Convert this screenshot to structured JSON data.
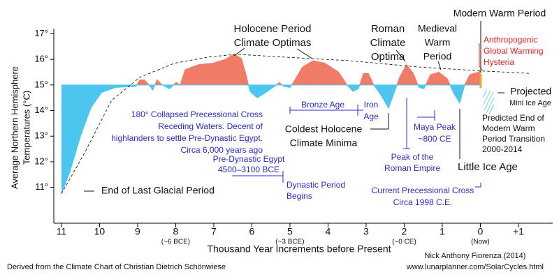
{
  "chart_data": {
    "type": "area",
    "y_label": [
      "Average Northern Hemisphere",
      "Temperatures (°C)"
    ],
    "x_label": "Thousand Year Increments before Present",
    "x": [
      11,
      10.78,
      10.5,
      10.23,
      9.95,
      9.59,
      9.04,
      8.94,
      8.82,
      8.7,
      8.6,
      8.49,
      8.35,
      8.16,
      7.99,
      7.88,
      7.75,
      7.39,
      7.02,
      6.7,
      6.47,
      6.28,
      6.16,
      6.05,
      5.86,
      5.64,
      5.4,
      5.28,
      5.18,
      5.0,
      4.87,
      4.67,
      4.39,
      4.08,
      3.72,
      3.5,
      3.35,
      3.2,
      3.07,
      2.94,
      2.8,
      2.61,
      2.41,
      2.25,
      2.12,
      1.94,
      1.76,
      1.61,
      1.48,
      1.31,
      1.09,
      0.87,
      0.69,
      0.54,
      0.41,
      0.28,
      0.06,
      0
    ],
    "values": [
      10.75,
      11.6,
      13.0,
      14.1,
      14.7,
      14.9,
      14.95,
      15.2,
      15.2,
      15.0,
      14.8,
      15.2,
      15.0,
      14.85,
      15.1,
      15.0,
      15.6,
      15.8,
      15.85,
      16.0,
      16.2,
      16.05,
      15.45,
      14.75,
      14.5,
      14.7,
      14.95,
      15.1,
      14.95,
      14.9,
      15.2,
      15.7,
      15.95,
      15.85,
      15.5,
      15.0,
      14.75,
      14.85,
      15.45,
      15.45,
      15.0,
      14.6,
      14.1,
      14.75,
      15.3,
      15.8,
      15.45,
      14.9,
      14.85,
      15.4,
      15.5,
      15.25,
      14.65,
      14.3,
      15.0,
      15.4,
      15.5,
      15.55
    ],
    "trend": {
      "x": [
        11,
        10.41,
        9.68,
        8.94,
        8.03,
        7.11,
        6.38,
        5.28,
        3.44,
        1.61,
        -0.05,
        -1.33
      ],
      "values": [
        10.75,
        12.3,
        14.4,
        15.3,
        15.85,
        16.1,
        16.2,
        16.1,
        15.95,
        15.7,
        15.55,
        15.45
      ]
    },
    "baseline": 15,
    "colors": {
      "above": "#f07b66",
      "below": "#4cc6ef",
      "note": "#2b2bd0",
      "alert": "#e8231f"
    },
    "xlim": [
      11.2,
      -1.9
    ],
    "ylim": [
      9.6,
      17.2
    ],
    "xticks": [
      11,
      10,
      9,
      8,
      7,
      6,
      5,
      4,
      3,
      2,
      1,
      0,
      {
        "value": -1,
        "label": "+1"
      }
    ],
    "era_labels": [
      {
        "value": 8,
        "label": "(~6 BCE)"
      },
      {
        "value": 5,
        "label": "(~3 BCE)"
      },
      {
        "value": 2,
        "label": "(~0 CE)"
      },
      {
        "value": 0,
        "label": "(Now)"
      }
    ],
    "yticks": [
      {
        "value": 11,
        "label": "11°"
      },
      {
        "value": 12,
        "label": "12°"
      },
      {
        "value": 13,
        "label": "13°"
      },
      {
        "value": 14,
        "label": "14°"
      },
      {
        "value": 15,
        "label": "15°"
      },
      {
        "value": 16,
        "label": "16°"
      },
      {
        "value": 17,
        "label": "17°"
      }
    ],
    "annotations": [
      {
        "lines": [
          "Holocene Period",
          "Climate Optimas"
        ]
      },
      {
        "lines": [
          "Roman",
          "Climate",
          "Optima"
        ]
      },
      {
        "lines": [
          "Medieval",
          "Warm",
          "Period"
        ]
      },
      {
        "lines": [
          "Modern Warm Period"
        ]
      },
      {
        "lines": [
          "Anthropogenic",
          "Global Warming",
          "Hysteria"
        ],
        "color": "alert"
      },
      {
        "lines": [
          "Projected"
        ]
      },
      {
        "lines": [
          "Mini Ice Age"
        ]
      },
      {
        "lines": [
          "Predicted End of",
          "Modern Warm",
          "Period Transition",
          "2000-2014"
        ]
      },
      {
        "lines": [
          "Little Ice Age"
        ]
      },
      {
        "lines": [
          "Coldest Holocene",
          "Climate Minima"
        ]
      },
      {
        "lines": [
          "180° Collapsed Precessional Cross",
          "Receding Waters. Decent of",
          "highlanders to settle Pre-Dynastic Egypt.",
          "Circa 6,000 years ago"
        ],
        "color": "note"
      },
      {
        "lines": [
          "Bronze Age"
        ],
        "color": "note"
      },
      {
        "lines": [
          "Iron",
          "Age"
        ],
        "color": "note"
      },
      {
        "lines": [
          "Maya Peak",
          "~800 CE"
        ],
        "color": "note"
      },
      {
        "lines": [
          "Peak of the",
          "Roman Empire"
        ],
        "color": "note"
      },
      {
        "lines": [
          "Pre-Dynastic Egypt",
          "4500–3100 BCE"
        ],
        "color": "note"
      },
      {
        "lines": [
          "Dynastic Period",
          "Begins"
        ],
        "color": "note"
      },
      {
        "lines": [
          "Current Precessional Cross",
          "Circa 1998 C.E."
        ],
        "color": "note"
      },
      {
        "lines": [
          "End of Last Glacial Period"
        ]
      }
    ],
    "credits": [
      "Derived from the Climate Chart of Christian Dietrich Schönwiese",
      "Nick Anthony Fiorenza (2014)",
      "www.lunarplanner.com/SolarCycles.html"
    ]
  }
}
